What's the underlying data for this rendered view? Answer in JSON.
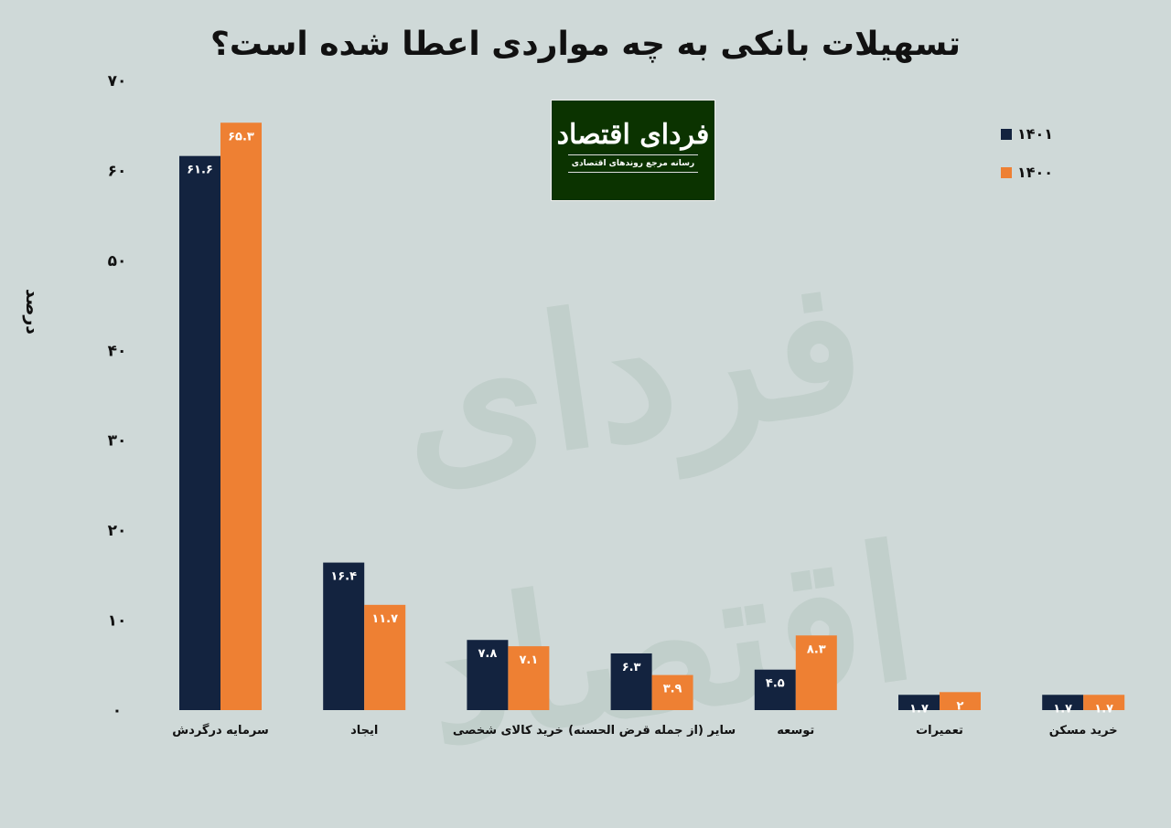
{
  "logo": {
    "name": "فردای اقتصاد",
    "tagline": "رسانه مرجع روندهای اقتصادی"
  },
  "watermark": "فردای اقتصاد",
  "chart_data": {
    "type": "bar",
    "title": "تسهیلات بانکی به چه مواردی اعطا شده است؟",
    "ylabel": "درصد",
    "xlabel": "",
    "ylim": [
      0,
      70
    ],
    "yticks": [
      0,
      10,
      20,
      30,
      40,
      50,
      60,
      70
    ],
    "ytick_labels": [
      "۰",
      "۱۰",
      "۲۰",
      "۳۰",
      "۴۰",
      "۵۰",
      "۶۰",
      "۷۰"
    ],
    "grid": false,
    "legend_position": "top-right",
    "categories": [
      "سرمایه درگردش",
      "ایجاد",
      "خرید کالای شخصی",
      "سایر (از جمله قرض الحسنه)",
      "توسعه",
      "تعمیرات",
      "خرید مسکن"
    ],
    "series": [
      {
        "name": "۱۴۰۱",
        "color": "#13233f",
        "values": [
          61.6,
          16.4,
          7.8,
          6.3,
          4.5,
          1.7,
          1.7
        ],
        "labels": [
          "۶۱.۶",
          "۱۶.۴",
          "۷.۸",
          "۶.۳",
          "۴.۵",
          "۱.۷",
          "۱.۷"
        ]
      },
      {
        "name": "۱۴۰۰",
        "color": "#ee8033",
        "values": [
          65.3,
          11.7,
          7.1,
          3.9,
          8.3,
          2,
          1.7
        ],
        "labels": [
          "۶۵.۳",
          "۱۱.۷",
          "۷.۱",
          "۳.۹",
          "۸.۳",
          "۲",
          "۱.۷"
        ]
      }
    ]
  }
}
